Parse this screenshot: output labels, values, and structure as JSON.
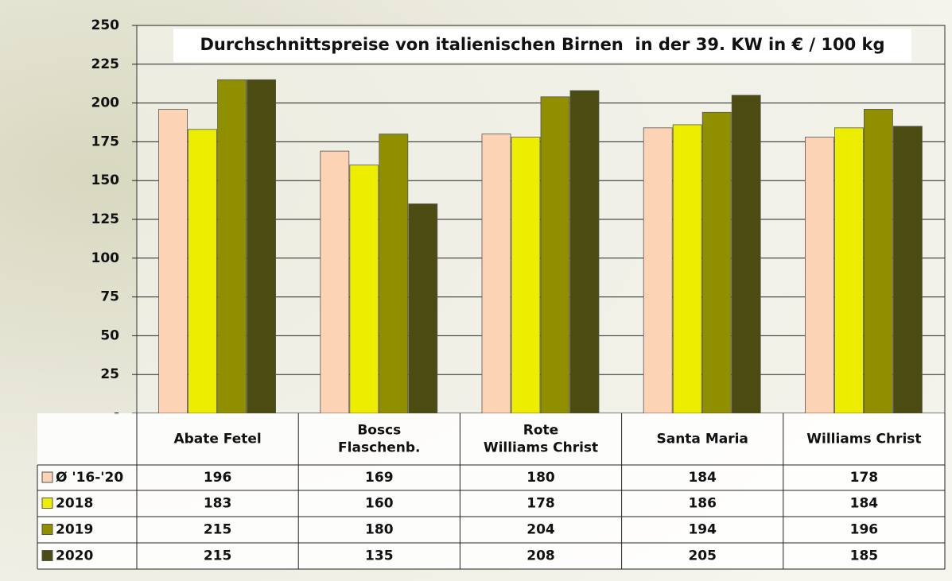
{
  "chart_data": {
    "type": "bar",
    "title": "Durchschnittspreise von italienischen Birnen  in der 39. KW in € / 100 kg",
    "categories": [
      "Abate Fetel",
      "Boscs\nFlaschenb.",
      "Rote\nWilliams Christ",
      "Santa Maria",
      "Williams Christ"
    ],
    "series": [
      {
        "name": "Ø '16-'20",
        "color": "#fcd3b4",
        "values": [
          196,
          169,
          180,
          184,
          178
        ]
      },
      {
        "name": "2018",
        "color": "#eded00",
        "values": [
          183,
          160,
          178,
          186,
          184
        ]
      },
      {
        "name": "2019",
        "color": "#8f8f00",
        "values": [
          215,
          180,
          204,
          194,
          196
        ]
      },
      {
        "name": "2020",
        "color": "#4b4b12",
        "values": [
          215,
          135,
          208,
          205,
          185
        ]
      }
    ],
    "ylim": [
      0,
      250
    ],
    "yticks": [
      {
        "value": 0,
        "label": "-"
      },
      25,
      50,
      75,
      100,
      125,
      150,
      175,
      200,
      225,
      250
    ],
    "grid": true,
    "data_table": true
  }
}
